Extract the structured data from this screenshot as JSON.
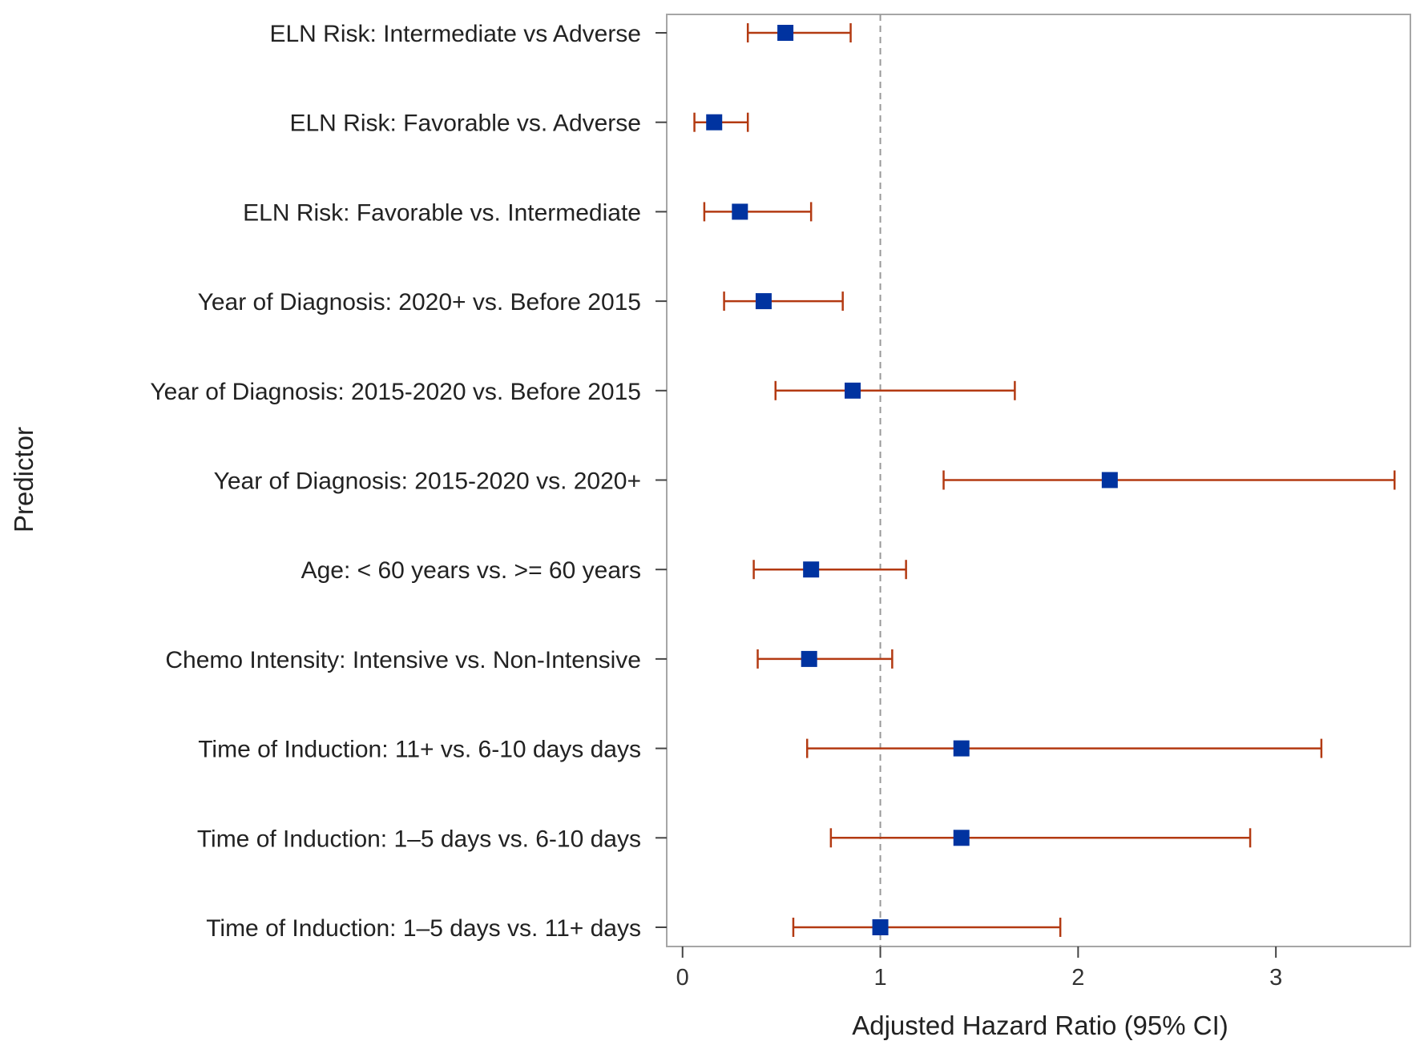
{
  "chart_data": {
    "type": "forest",
    "xlabel": "Adjusted Hazard Ratio (95% CI)",
    "ylabel": "Predictor",
    "xlim": [
      -0.08,
      3.68
    ],
    "xticks": [
      0,
      1,
      2,
      3
    ],
    "reference_line": 1,
    "grid": false,
    "colors": {
      "point": "#0033a0",
      "ci_line": "#b33a12",
      "reference": "#999999",
      "frame": "#a6a6a6"
    },
    "rows": [
      {
        "label": "ELN Risk: Intermediate vs Adverse",
        "hr": 0.52,
        "lower": 0.33,
        "upper": 0.85
      },
      {
        "label": "ELN Risk: Favorable vs. Adverse",
        "hr": 0.16,
        "lower": 0.06,
        "upper": 0.33
      },
      {
        "label": "ELN Risk: Favorable vs. Intermediate",
        "hr": 0.29,
        "lower": 0.11,
        "upper": 0.65
      },
      {
        "label": "Year of Diagnosis: 2020+ vs. Before 2015",
        "hr": 0.41,
        "lower": 0.21,
        "upper": 0.81
      },
      {
        "label": "Year of Diagnosis: 2015-2020 vs. Before 2015",
        "hr": 0.86,
        "lower": 0.47,
        "upper": 1.68
      },
      {
        "label": "Year of Diagnosis: 2015-2020 vs. 2020+",
        "hr": 2.16,
        "lower": 1.32,
        "upper": 3.6
      },
      {
        "label": "Age: < 60 years vs. >= 60 years",
        "hr": 0.65,
        "lower": 0.36,
        "upper": 1.13
      },
      {
        "label": "Chemo Intensity: Intensive vs. Non-Intensive",
        "hr": 0.64,
        "lower": 0.38,
        "upper": 1.06
      },
      {
        "label": "Time of Induction:  11+ vs. 6-10 days days",
        "hr": 1.41,
        "lower": 0.63,
        "upper": 3.23
      },
      {
        "label": "Time of Induction: 1–5 days vs. 6-10 days",
        "hr": 1.41,
        "lower": 0.75,
        "upper": 2.87
      },
      {
        "label": "Time of Induction: 1–5 days vs. 11+ days",
        "hr": 1.0,
        "lower": 0.56,
        "upper": 1.91
      }
    ]
  }
}
